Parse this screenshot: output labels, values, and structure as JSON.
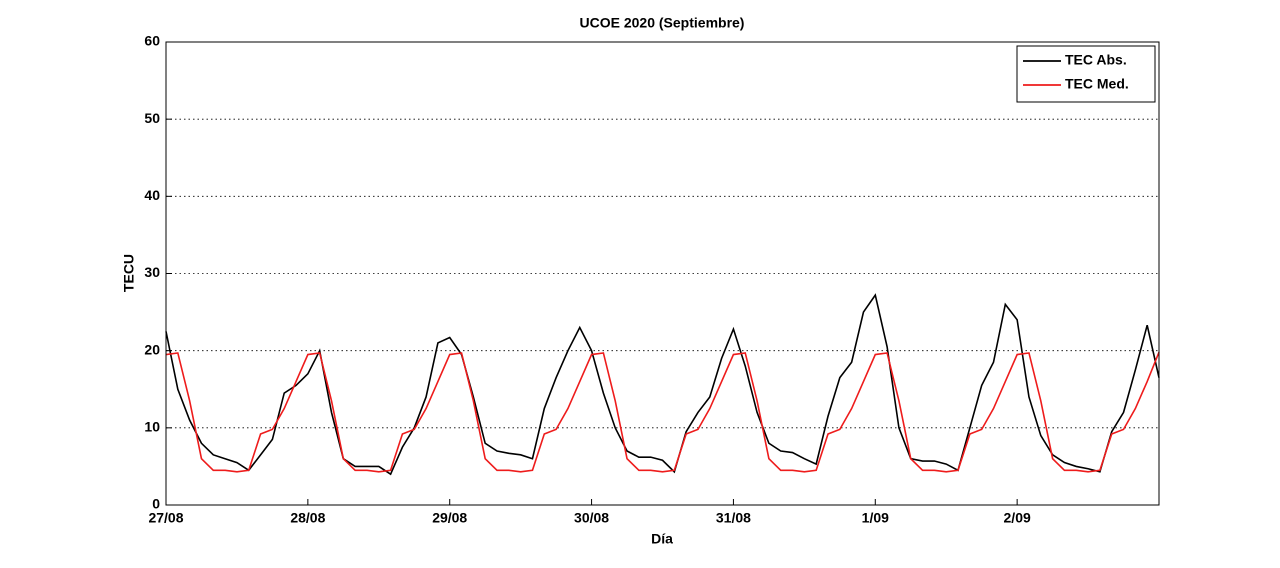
{
  "chart_data": {
    "type": "line",
    "title": "UCOE 2020 (Septiembre)",
    "xlabel": "Día",
    "ylabel": "TECU",
    "x": [
      0,
      2,
      4,
      6,
      8,
      10,
      12,
      14,
      16,
      18,
      20,
      22,
      24,
      26,
      28,
      30,
      32,
      34,
      36,
      38,
      40,
      42,
      44,
      46,
      48,
      50,
      52,
      54,
      56,
      58,
      60,
      62,
      64,
      66,
      68,
      70,
      72,
      74,
      76,
      78,
      80,
      82,
      84,
      86,
      88,
      90,
      92,
      94,
      96,
      98,
      100,
      102,
      104,
      106,
      108,
      110,
      112,
      114,
      116,
      118,
      120,
      122,
      124,
      126,
      128,
      130,
      132,
      134,
      136,
      138,
      140,
      142,
      144,
      146,
      148,
      150,
      152,
      154,
      156,
      158,
      160,
      162,
      164,
      166,
      168
    ],
    "series": [
      {
        "name": "TEC Abs.",
        "color": "#000000",
        "values": [
          22.5,
          15,
          11,
          8,
          6.5,
          6,
          5.5,
          4.5,
          6.5,
          8.5,
          14.5,
          15.5,
          17,
          20,
          12,
          6,
          5,
          5,
          5,
          4,
          7.5,
          10,
          14,
          21,
          21.7,
          19.5,
          14,
          8,
          7,
          6.7,
          6.5,
          6,
          12.5,
          16.5,
          20,
          23,
          20,
          14.5,
          10,
          7,
          6.2,
          6.2,
          5.8,
          4.3,
          9.5,
          12,
          14,
          19,
          22.8,
          18,
          12,
          8,
          7,
          6.8,
          6,
          5.3,
          11.5,
          16.5,
          18.5,
          25,
          27.2,
          20.5,
          10,
          6,
          5.7,
          5.7,
          5.3,
          4.5,
          10,
          15.5,
          18.5,
          26,
          24,
          14,
          9,
          6.5,
          5.5,
          5,
          4.7,
          4.3,
          9.5,
          12,
          17.5,
          23.3,
          16.5
        ]
      },
      {
        "name": "TEC Med.",
        "color": "#ee1c1c",
        "values": [
          19.5,
          19.7,
          13.5,
          6,
          4.5,
          4.5,
          4.3,
          4.5,
          9.2,
          9.8,
          12.5,
          16,
          19.5,
          19.7,
          13.5,
          6,
          4.5,
          4.5,
          4.3,
          4.5,
          9.2,
          9.8,
          12.5,
          16,
          19.5,
          19.7,
          13.5,
          6,
          4.5,
          4.5,
          4.3,
          4.5,
          9.2,
          9.8,
          12.5,
          16,
          19.5,
          19.7,
          13.5,
          6,
          4.5,
          4.5,
          4.3,
          4.5,
          9.2,
          9.8,
          12.5,
          16,
          19.5,
          19.7,
          13.5,
          6,
          4.5,
          4.5,
          4.3,
          4.5,
          9.2,
          9.8,
          12.5,
          16,
          19.5,
          19.7,
          13.5,
          6,
          4.5,
          4.5,
          4.3,
          4.5,
          9.2,
          9.8,
          12.5,
          16,
          19.5,
          19.7,
          13.5,
          6,
          4.5,
          4.5,
          4.3,
          4.5,
          9.2,
          9.8,
          12.5,
          16,
          19.8
        ]
      }
    ],
    "xlim": [
      0,
      168
    ],
    "xticks": [
      {
        "value": 0,
        "label": "27/08"
      },
      {
        "value": 24,
        "label": "28/08"
      },
      {
        "value": 48,
        "label": "29/08"
      },
      {
        "value": 72,
        "label": "30/08"
      },
      {
        "value": 96,
        "label": "31/08"
      },
      {
        "value": 120,
        "label": "1/09"
      },
      {
        "value": 144,
        "label": "2/09"
      }
    ],
    "ylim": [
      0,
      60
    ],
    "yticks": [
      0,
      10,
      20,
      30,
      40,
      50,
      60
    ],
    "grid": true,
    "legend": "top-right"
  }
}
